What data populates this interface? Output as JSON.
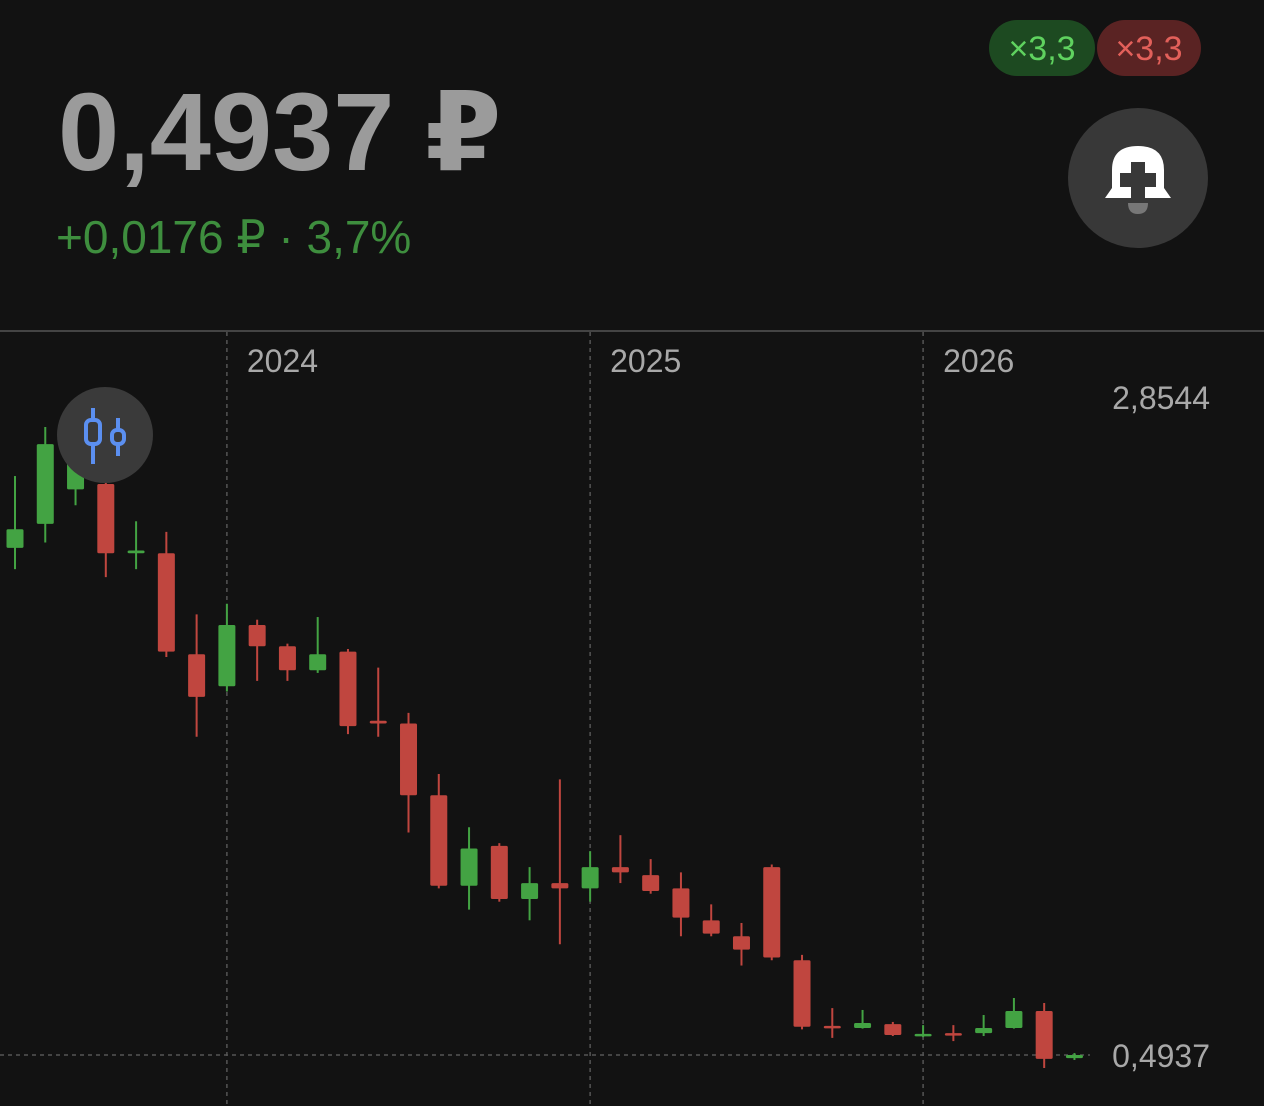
{
  "header": {
    "price": "0,4937 ₽",
    "change": "+0,0176 ₽ · 3,7%",
    "badges": [
      "×3,3",
      "×3,3"
    ]
  },
  "chart_data": {
    "type": "candlestick",
    "categories": [
      null,
      null,
      null,
      null,
      null,
      null,
      null,
      "2024",
      null,
      null,
      null,
      null,
      null,
      null,
      null,
      null,
      null,
      null,
      null,
      "2025",
      null,
      null,
      null,
      null,
      null,
      null,
      null,
      null,
      null,
      null,
      "2026",
      null,
      null,
      null,
      null,
      null
    ],
    "open": [
      2.4,
      2.49,
      2.62,
      2.64,
      2.38,
      2.38,
      2.0,
      1.88,
      2.11,
      2.03,
      1.94,
      2.01,
      1.75,
      1.74,
      1.47,
      1.13,
      1.28,
      1.08,
      1.14,
      1.12,
      1.2,
      1.17,
      1.12,
      1.0,
      0.94,
      1.2,
      0.85,
      0.603,
      0.595,
      0.61,
      0.565,
      0.576,
      0.576,
      0.595,
      0.659,
      0.482
    ],
    "high": [
      2.67,
      2.8544,
      2.81,
      2.69,
      2.5,
      2.46,
      2.15,
      2.19,
      2.13,
      2.04,
      2.14,
      2.02,
      1.95,
      1.78,
      1.55,
      1.35,
      1.29,
      1.2,
      1.53,
      1.26,
      1.32,
      1.23,
      1.18,
      1.06,
      0.99,
      1.21,
      0.87,
      0.67,
      0.663,
      0.618,
      0.606,
      0.606,
      0.644,
      0.708,
      0.689,
      0.501
    ],
    "low": [
      2.32,
      2.42,
      2.56,
      2.29,
      2.32,
      1.99,
      1.69,
      1.86,
      1.9,
      1.9,
      1.93,
      1.7,
      1.69,
      1.33,
      1.12,
      1.04,
      1.07,
      1.0,
      0.91,
      1.07,
      1.14,
      1.1,
      0.94,
      0.94,
      0.83,
      0.85,
      0.59,
      0.558,
      0.593,
      0.565,
      0.561,
      0.546,
      0.565,
      0.593,
      0.445,
      0.475
    ],
    "close": [
      2.47,
      2.79,
      2.73,
      2.38,
      2.39,
      2.01,
      1.84,
      2.11,
      2.03,
      1.94,
      2.0,
      1.73,
      1.74,
      1.47,
      1.13,
      1.27,
      1.08,
      1.14,
      1.12,
      1.2,
      1.18,
      1.11,
      1.01,
      0.95,
      0.89,
      0.86,
      0.6,
      0.595,
      0.614,
      0.569,
      0.573,
      0.569,
      0.595,
      0.659,
      0.479,
      0.4937
    ],
    "up_color": "#43a343",
    "down_color": "#c0463f",
    "ylim": [
      0.302,
      3.219
    ],
    "yticks": [
      {
        "value": 0.4937,
        "label": "0,4937"
      },
      {
        "value": 2.8544,
        "label": "2,8544"
      }
    ]
  }
}
